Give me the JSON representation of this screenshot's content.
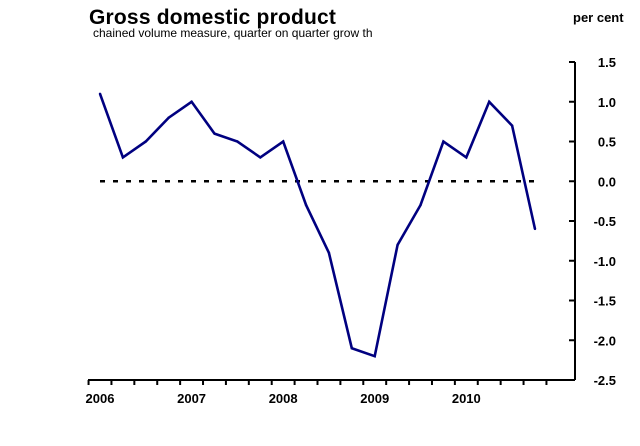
{
  "chart_data": {
    "type": "line",
    "title": "Gross domestic product",
    "subtitle": "chained volume measure, quarter on quarter grow th",
    "ylabel": "per cent",
    "xlabel": "",
    "x_tick_labels": [
      "2006",
      "2007",
      "2008",
      "2009",
      "2010"
    ],
    "y_tick_labels": [
      "1.5",
      "1.0",
      "0.5",
      "0.0",
      "-0.5",
      "-1.0",
      "-1.5",
      "-2.0",
      "-2.5"
    ],
    "y_ticks": [
      1.5,
      1.0,
      0.5,
      0.0,
      -0.5,
      -1.0,
      -1.5,
      -2.0,
      -2.5
    ],
    "ylim": [
      -2.5,
      1.5
    ],
    "x": [
      "2006 Q1",
      "2006 Q2",
      "2006 Q3",
      "2006 Q4",
      "2007 Q1",
      "2007 Q2",
      "2007 Q3",
      "2007 Q4",
      "2008 Q1",
      "2008 Q2",
      "2008 Q3",
      "2008 Q4",
      "2009 Q1",
      "2009 Q2",
      "2009 Q3",
      "2009 Q4",
      "2010 Q1",
      "2010 Q2",
      "2010 Q3",
      "2010 Q4"
    ],
    "series": [
      {
        "color": "#000080",
        "values": [
          1.1,
          0.3,
          0.5,
          0.8,
          1.0,
          0.6,
          0.5,
          0.3,
          0.5,
          -0.3,
          -0.9,
          -2.1,
          -2.2,
          -0.8,
          -0.3,
          0.5,
          0.3,
          1.0,
          0.7,
          -0.6
        ]
      }
    ],
    "zero_line": {
      "value": 0.0,
      "style": "dashed",
      "color": "#000000"
    },
    "grid": false,
    "y_axis_position": "right"
  }
}
